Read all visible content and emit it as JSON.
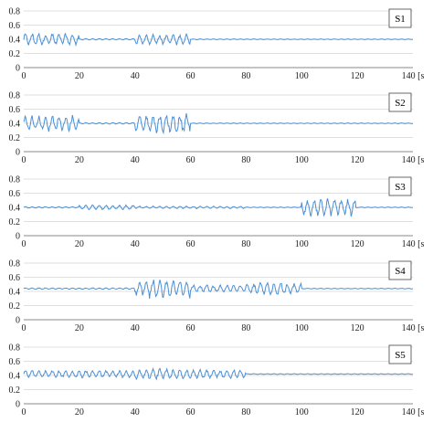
{
  "chart_data": [
    {
      "type": "line",
      "label": "S1",
      "ylim": [
        0,
        0.8
      ],
      "yticks": [
        0,
        0.2,
        0.4,
        0.6,
        0.8
      ],
      "xlim": [
        0,
        140
      ],
      "xticks": [
        0,
        20,
        40,
        60,
        80,
        100,
        120,
        140
      ],
      "x_unit": "[s",
      "color": "#4a8fd6",
      "baseline": 0.4,
      "segments": [
        {
          "x": [
            0,
            20
          ],
          "amplitude": 0.08
        },
        {
          "x": [
            20,
            40
          ],
          "amplitude": 0.01
        },
        {
          "x": [
            40,
            60
          ],
          "amplitude": 0.07
        },
        {
          "x": [
            60,
            140
          ],
          "amplitude": 0.005
        }
      ]
    },
    {
      "type": "line",
      "label": "S2",
      "ylim": [
        0,
        0.8
      ],
      "yticks": [
        0,
        0.2,
        0.4,
        0.6,
        0.8
      ],
      "xlim": [
        0,
        140
      ],
      "xticks": [
        0,
        20,
        40,
        60,
        80,
        100,
        120,
        140
      ],
      "x_unit": "[s",
      "color": "#4a8fd6",
      "baseline": 0.4,
      "segments": [
        {
          "x": [
            0,
            20
          ],
          "amplitude": 0.1
        },
        {
          "x": [
            20,
            40
          ],
          "amplitude": 0.01
        },
        {
          "x": [
            40,
            60
          ],
          "amplitude": 0.13
        },
        {
          "x": [
            60,
            140
          ],
          "amplitude": 0.005
        }
      ]
    },
    {
      "type": "line",
      "label": "S3",
      "ylim": [
        0,
        0.8
      ],
      "yticks": [
        0,
        0.2,
        0.4,
        0.6,
        0.8
      ],
      "xlim": [
        0,
        140
      ],
      "xticks": [
        0,
        20,
        40,
        60,
        80,
        100,
        120,
        140
      ],
      "x_unit": "[s",
      "color": "#4a8fd6",
      "baseline": 0.4,
      "segments": [
        {
          "x": [
            0,
            20
          ],
          "amplitude": 0.01
        },
        {
          "x": [
            20,
            40
          ],
          "amplitude": 0.03
        },
        {
          "x": [
            40,
            80
          ],
          "amplitude": 0.015
        },
        {
          "x": [
            80,
            100
          ],
          "amplitude": 0.005
        },
        {
          "x": [
            100,
            120
          ],
          "amplitude": 0.12
        },
        {
          "x": [
            120,
            140
          ],
          "amplitude": 0.005
        }
      ]
    },
    {
      "type": "line",
      "label": "S4",
      "ylim": [
        0,
        0.8
      ],
      "yticks": [
        0,
        0.2,
        0.4,
        0.6,
        0.8
      ],
      "xlim": [
        0,
        140
      ],
      "xticks": [
        0,
        20,
        40,
        60,
        80,
        100,
        120,
        140
      ],
      "x_unit": "[s",
      "color": "#4a8fd6",
      "baseline": 0.44,
      "segments": [
        {
          "x": [
            0,
            40
          ],
          "amplitude": 0.01
        },
        {
          "x": [
            40,
            60
          ],
          "amplitude": 0.12
        },
        {
          "x": [
            60,
            80
          ],
          "amplitude": 0.05
        },
        {
          "x": [
            80,
            100
          ],
          "amplitude": 0.08
        },
        {
          "x": [
            100,
            140
          ],
          "amplitude": 0.005
        }
      ]
    },
    {
      "type": "line",
      "label": "S5",
      "ylim": [
        0,
        0.8
      ],
      "yticks": [
        0,
        0.2,
        0.4,
        0.6,
        0.8
      ],
      "xlim": [
        0,
        140
      ],
      "xticks": [
        0,
        20,
        40,
        60,
        80,
        100,
        120,
        140
      ],
      "x_unit": "[s",
      "color": "#4a8fd6",
      "baseline": 0.42,
      "segments": [
        {
          "x": [
            0,
            40
          ],
          "amplitude": 0.05
        },
        {
          "x": [
            40,
            60
          ],
          "amplitude": 0.07
        },
        {
          "x": [
            60,
            80
          ],
          "amplitude": 0.06
        },
        {
          "x": [
            80,
            140
          ],
          "amplitude": 0.005
        }
      ]
    }
  ]
}
